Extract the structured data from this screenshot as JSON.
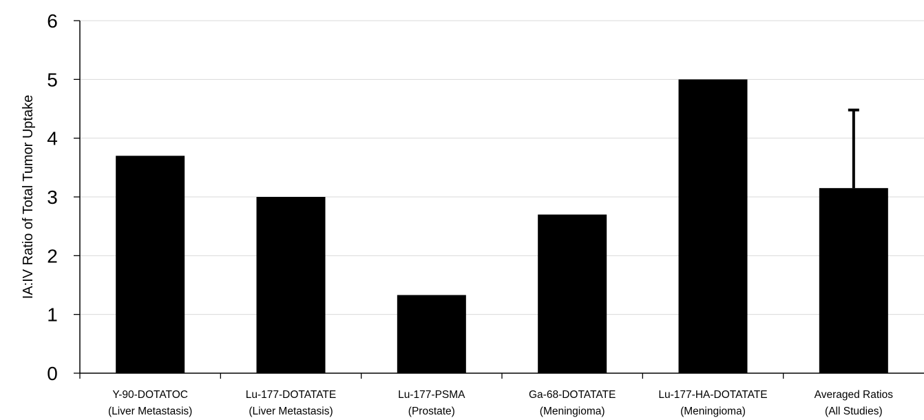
{
  "chart_data": {
    "type": "bar",
    "title": "",
    "xlabel": "",
    "ylabel": "IA:IV Ratio of Total Tumor Uptake",
    "ylim": [
      0,
      6
    ],
    "yticks": [
      0,
      1,
      2,
      3,
      4,
      5,
      6
    ],
    "grid": true,
    "categories": [
      {
        "line1": "Y-90-DOTATOC",
        "line2": "(Liver Metastasis)"
      },
      {
        "line1": "Lu-177-DOTATATE",
        "line2": "(Liver Metastasis)"
      },
      {
        "line1": "Lu-177-PSMA",
        "line2": "(Prostate)"
      },
      {
        "line1": "Ga-68-DOTATATE",
        "line2": "(Meningioma)"
      },
      {
        "line1": "Lu-177-HA-DOTATATE",
        "line2": "(Meningioma)"
      },
      {
        "line1": "Averaged Ratios",
        "line2": "(All Studies)"
      }
    ],
    "values": [
      3.7,
      3.0,
      1.33,
      2.7,
      5.0,
      3.15
    ],
    "error_upper": [
      null,
      null,
      null,
      null,
      null,
      4.48
    ],
    "colors": {
      "bar": "#000000",
      "grid": "#d9d9d9",
      "axis": "#000000"
    }
  }
}
